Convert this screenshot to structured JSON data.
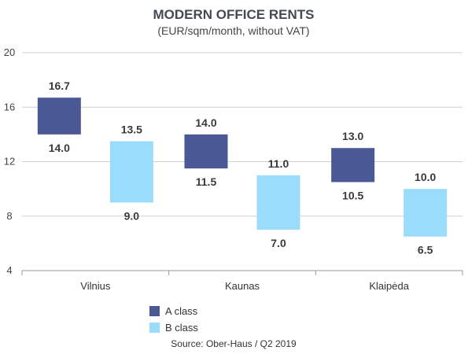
{
  "chart_data": {
    "type": "bar",
    "subtype": "floating-range",
    "title": "MODERN OFFICE RENTS",
    "subtitle": "(EUR/sqm/month, without VAT)",
    "categories": [
      "Vilnius",
      "Kaunas",
      "Klaipėda"
    ],
    "ylim": [
      4,
      20
    ],
    "yticks": [
      "4",
      "8",
      "12",
      "16",
      "20"
    ],
    "grid": true,
    "legend_position": "bottom",
    "series": [
      {
        "name": "A class",
        "color": "#4a5896",
        "low": [
          14.0,
          11.5,
          10.5
        ],
        "high": [
          16.7,
          14.0,
          13.0
        ],
        "low_labels": [
          "14.0",
          "11.5",
          "10.5"
        ],
        "high_labels": [
          "16.7",
          "14.0",
          "13.0"
        ]
      },
      {
        "name": "B class",
        "color": "#99dcfb",
        "low": [
          9.0,
          7.0,
          6.5
        ],
        "high": [
          13.5,
          11.0,
          10.0
        ],
        "low_labels": [
          "9.0",
          "7.0",
          "6.5"
        ],
        "high_labels": [
          "13.5",
          "11.0",
          "10.0"
        ]
      }
    ],
    "source": "Source: Ober-Haus  / Q2 2019"
  }
}
